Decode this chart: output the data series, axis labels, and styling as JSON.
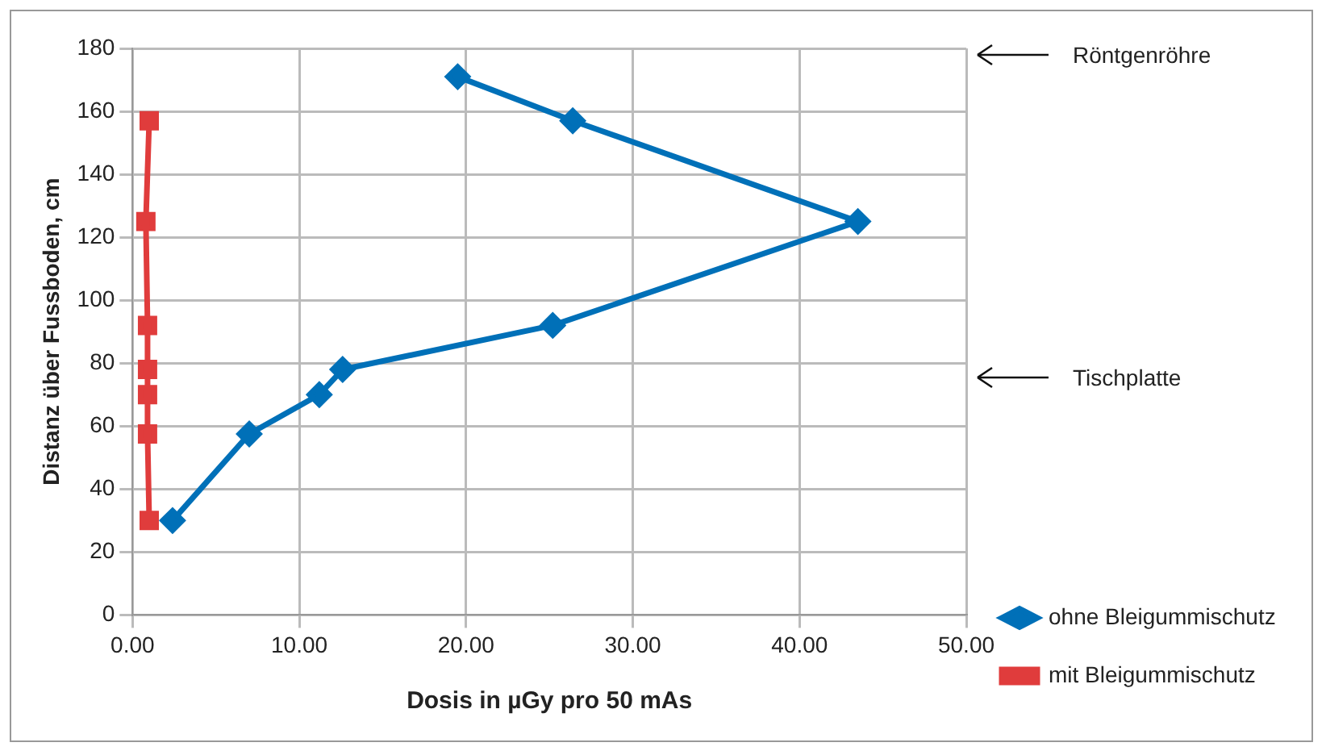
{
  "chart_data": {
    "type": "line",
    "xlabel": "Dosis in µGy pro 50 mAs",
    "ylabel": "Distanz über Fussboden, cm",
    "xlim": [
      0,
      50
    ],
    "xticks": [
      {
        "value": 0,
        "label": "0.00"
      },
      {
        "value": 10,
        "label": "10.00"
      },
      {
        "value": 20,
        "label": "20.00"
      },
      {
        "value": 30,
        "label": "30.00"
      },
      {
        "value": 40,
        "label": "40.00"
      },
      {
        "value": 50,
        "label": "50.00"
      }
    ],
    "ylim": [
      0,
      180
    ],
    "yticks": [
      0,
      20,
      40,
      60,
      80,
      100,
      120,
      140,
      160,
      180
    ],
    "grid": true,
    "legend": "right",
    "series": [
      {
        "name": "ohne Bleigummischutz",
        "color": "#0070b8",
        "marker": "diamond",
        "x": [
          2.4,
          7.0,
          11.2,
          12.6,
          25.2,
          43.5,
          26.4,
          19.5
        ],
        "values": [
          30,
          57.5,
          70,
          78,
          92,
          125,
          157,
          171
        ]
      },
      {
        "name": "mit Bleigummischutz",
        "color": "#e03c3c",
        "marker": "square",
        "x": [
          1.0,
          0.9,
          0.9,
          0.9,
          0.9,
          0.8,
          1.0
        ],
        "values": [
          30,
          57.5,
          70,
          78,
          92,
          125,
          157
        ]
      }
    ],
    "annotations": [
      "Röntgenröhre",
      "Tischplatte"
    ]
  }
}
